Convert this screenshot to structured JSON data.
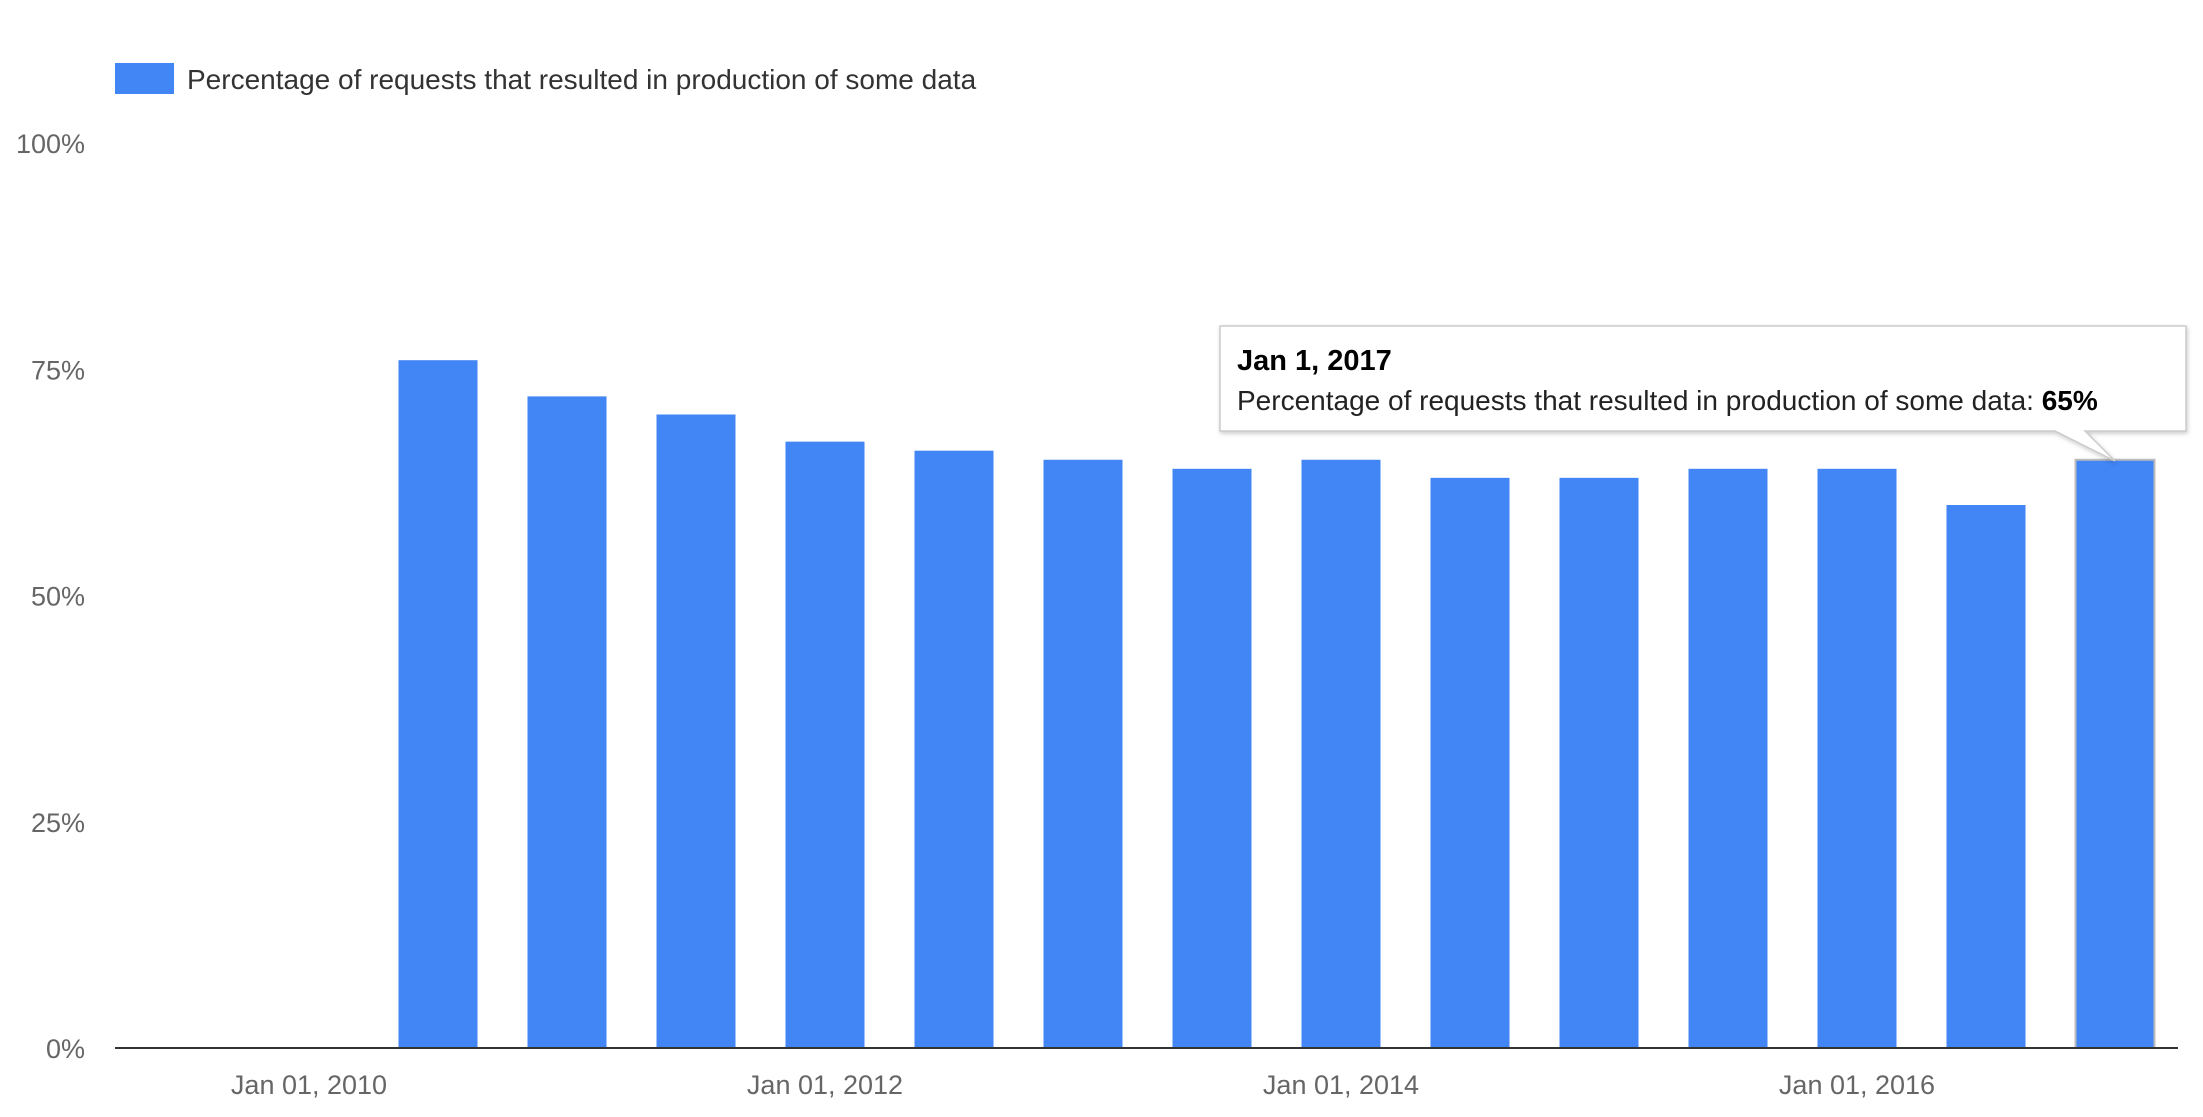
{
  "chart_data": {
    "type": "bar",
    "title": "",
    "xlabel": "",
    "ylabel": "",
    "ylim": [
      0,
      100
    ],
    "y_ticks": [
      "0%",
      "25%",
      "50%",
      "75%",
      "100%"
    ],
    "y_tick_values": [
      0,
      25,
      50,
      75,
      100
    ],
    "x_ticks": [
      "Jan 01, 2010",
      "Jan 01, 2012",
      "Jan 01, 2014",
      "Jan 01, 2016"
    ],
    "x_tick_values": [
      2010,
      2012,
      2014,
      2016
    ],
    "xlim": [
      2009.5,
      2017.3
    ],
    "grid": false,
    "legend": {
      "position": "top-left",
      "entries": [
        "Percentage of requests that resulted in production of some data"
      ]
    },
    "series": [
      {
        "name": "Percentage of requests that resulted in production of some data",
        "color": "#4285f4",
        "x": [
          2010.5,
          2011.0,
          2011.5,
          2012.0,
          2012.5,
          2013.0,
          2013.5,
          2014.0,
          2014.5,
          2015.0,
          2015.5,
          2016.0,
          2016.5,
          2017.0
        ],
        "values": [
          76,
          72,
          70,
          67,
          66,
          65,
          64,
          65,
          63,
          63,
          64,
          64,
          60,
          65
        ]
      }
    ],
    "tooltip": {
      "title": "Jan 1, 2017",
      "label": "Percentage of requests that resulted in production of some data: ",
      "value": "65%",
      "bar_index": 13
    }
  }
}
